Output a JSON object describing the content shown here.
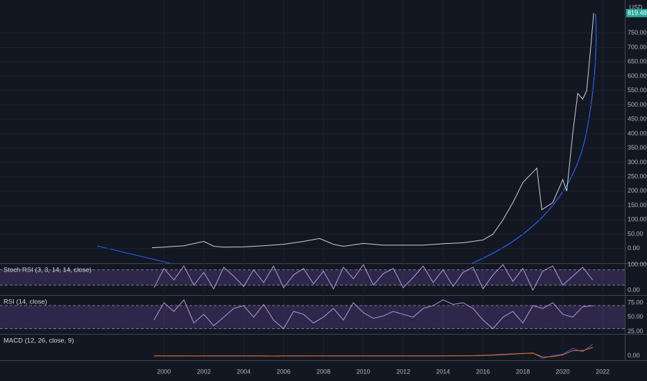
{
  "chart_data": [
    {
      "type": "line",
      "currency": "USD",
      "last_value_label": "819.48",
      "color": "#d1d4dc",
      "label_color": "#26a69a",
      "x": [
        1999.4,
        2000,
        2001,
        2002,
        2002.5,
        2003,
        2004,
        2005,
        2006,
        2007,
        2007.8,
        2008.5,
        2009,
        2010,
        2011,
        2012,
        2013,
        2014,
        2015,
        2016,
        2016.5,
        2017,
        2017.5,
        2018,
        2018.7,
        2018.95,
        2019.5,
        2020,
        2020.2,
        2020.5,
        2020.75,
        2021,
        2021.2,
        2021.4,
        2021.55
      ],
      "values": [
        3,
        5,
        10,
        25,
        8,
        5,
        6,
        10,
        15,
        25,
        35,
        15,
        8,
        18,
        12,
        12,
        12,
        17,
        20,
        30,
        50,
        100,
        160,
        230,
        280,
        135,
        160,
        240,
        200,
        400,
        540,
        520,
        550,
        700,
        819.48
      ],
      "xlim": [
        1991.78,
        2023.11
      ],
      "ylim": [
        -51,
        865
      ],
      "xticks": [
        2000,
        2002,
        2004,
        2006,
        2008,
        2010,
        2012,
        2014,
        2016,
        2018,
        2020,
        2022
      ],
      "yticks": [
        {
          "value": 0,
          "label": "0.00"
        },
        {
          "value": 50,
          "label": "50.00"
        },
        {
          "value": 100,
          "label": "100.00"
        },
        {
          "value": 150,
          "label": "150.00"
        },
        {
          "value": 200,
          "label": "200.00"
        },
        {
          "value": 250,
          "label": "250.00"
        },
        {
          "value": 300,
          "label": "300.00"
        },
        {
          "value": 350,
          "label": "350.00"
        },
        {
          "value": 400,
          "label": "400.00"
        },
        {
          "value": 450,
          "label": "450.00"
        },
        {
          "value": 500,
          "label": "500.00"
        },
        {
          "value": 550,
          "label": "550.00"
        },
        {
          "value": 600,
          "label": "600.00"
        },
        {
          "value": 650,
          "label": "650.00"
        },
        {
          "value": 700,
          "label": "700.00"
        },
        {
          "value": 750,
          "label": "750.00"
        }
      ],
      "grid": true
    },
    {
      "type": "line",
      "title": "Stoch RSI (3, 3, 14, 14, close)",
      "color": "#b39ddb",
      "bands": [
        20,
        80
      ],
      "x": [
        1999.5,
        2000,
        2000.5,
        2001,
        2001.5,
        2002,
        2002.5,
        2003,
        2003.5,
        2004,
        2004.5,
        2005,
        2005.5,
        2006,
        2006.5,
        2007,
        2007.5,
        2008,
        2008.5,
        2009,
        2009.5,
        2010,
        2010.5,
        2011,
        2011.5,
        2012,
        2012.5,
        2013,
        2013.5,
        2014,
        2014.5,
        2015,
        2015.5,
        2016,
        2016.5,
        2017,
        2017.5,
        2018,
        2018.5,
        2019,
        2019.5,
        2020,
        2020.5,
        2021,
        2021.5
      ],
      "values": [
        10,
        85,
        40,
        95,
        20,
        70,
        5,
        90,
        55,
        15,
        80,
        30,
        95,
        10,
        60,
        85,
        25,
        75,
        5,
        90,
        45,
        100,
        20,
        65,
        85,
        10,
        50,
        95,
        30,
        80,
        15,
        70,
        90,
        5,
        60,
        100,
        35,
        85,
        0,
        75,
        95,
        20,
        55,
        90,
        40
      ],
      "ylim": [
        -19,
        103
      ],
      "yticks": [
        {
          "value": 100,
          "label": "100.00"
        },
        {
          "value": 0,
          "label": "0.00"
        }
      ]
    },
    {
      "type": "line",
      "title": "RSI (14, close)",
      "color": "#b39ddb",
      "bands": [
        30,
        70
      ],
      "x": [
        1999.5,
        2000,
        2000.5,
        2001,
        2001.5,
        2002,
        2002.5,
        2003,
        2003.5,
        2004,
        2004.5,
        2005,
        2005.5,
        2006,
        2006.5,
        2007,
        2007.5,
        2008,
        2008.5,
        2009,
        2009.5,
        2010,
        2010.5,
        2011,
        2011.5,
        2012,
        2012.5,
        2013,
        2013.5,
        2014,
        2014.5,
        2015,
        2015.5,
        2016,
        2016.5,
        2017,
        2017.5,
        2018,
        2018.5,
        2019,
        2019.5,
        2020,
        2020.5,
        2021,
        2021.5
      ],
      "values": [
        45,
        75,
        60,
        80,
        40,
        55,
        35,
        50,
        65,
        70,
        50,
        72,
        45,
        30,
        60,
        55,
        40,
        50,
        65,
        45,
        75,
        58,
        48,
        52,
        60,
        55,
        50,
        65,
        70,
        80,
        72,
        75,
        65,
        45,
        30,
        50,
        60,
        40,
        70,
        65,
        75,
        55,
        50,
        68,
        70
      ],
      "ylim": [
        21,
        87
      ],
      "yticks": [
        {
          "value": 75,
          "label": "75.00"
        },
        {
          "value": 50,
          "label": "50.00"
        },
        {
          "value": 25,
          "label": "25.00"
        }
      ]
    },
    {
      "type": "line",
      "title": "MACD (12, 26, close, 9)",
      "x": [
        1999.5,
        2000,
        2000.5,
        2001,
        2001.5,
        2002,
        2002.5,
        2003,
        2003.5,
        2004,
        2004.5,
        2005,
        2005.5,
        2006,
        2006.5,
        2007,
        2007.5,
        2008,
        2008.5,
        2009,
        2009.5,
        2010,
        2010.5,
        2011,
        2011.5,
        2012,
        2012.5,
        2013,
        2013.5,
        2014,
        2014.5,
        2015,
        2015.5,
        2016,
        2016.5,
        2017,
        2017.5,
        2018,
        2018.5,
        2019,
        2019.5,
        2020,
        2020.5,
        2021,
        2021.5
      ],
      "series": [
        {
          "color": "#2962ff",
          "values": [
            0,
            0.2,
            0.5,
            -0.3,
            -0.5,
            0,
            0.1,
            0.2,
            0.4,
            0.5,
            0.3,
            -0.4,
            -0.6,
            0.2,
            0.3,
            0,
            -0.2,
            0.1,
            0,
            0,
            0.1,
            0,
            0.1,
            0,
            0,
            0.2,
            0.1,
            0.3,
            0.5,
            0.4,
            0.8,
            1,
            1.5,
            3,
            5,
            8,
            10,
            12,
            14,
            -12,
            2,
            8,
            35,
            20,
            55
          ]
        },
        {
          "color": "#ff6d00",
          "values": [
            0,
            0.1,
            0.3,
            0,
            -0.3,
            -0.2,
            0,
            0.1,
            0.3,
            0.4,
            0.4,
            0,
            -0.4,
            -0.1,
            0.2,
            0.1,
            -0.1,
            0,
            0,
            0,
            0,
            0,
            0,
            0,
            0,
            0.1,
            0.1,
            0.2,
            0.4,
            0.4,
            0.6,
            0.9,
            1.2,
            2,
            4,
            6,
            9,
            11,
            13,
            -5,
            -3,
            5,
            25,
            25,
            40
          ]
        }
      ],
      "ylim": [
        -20,
        100
      ],
      "yticks": [
        {
          "value": 0,
          "label": "0.00"
        }
      ]
    }
  ]
}
